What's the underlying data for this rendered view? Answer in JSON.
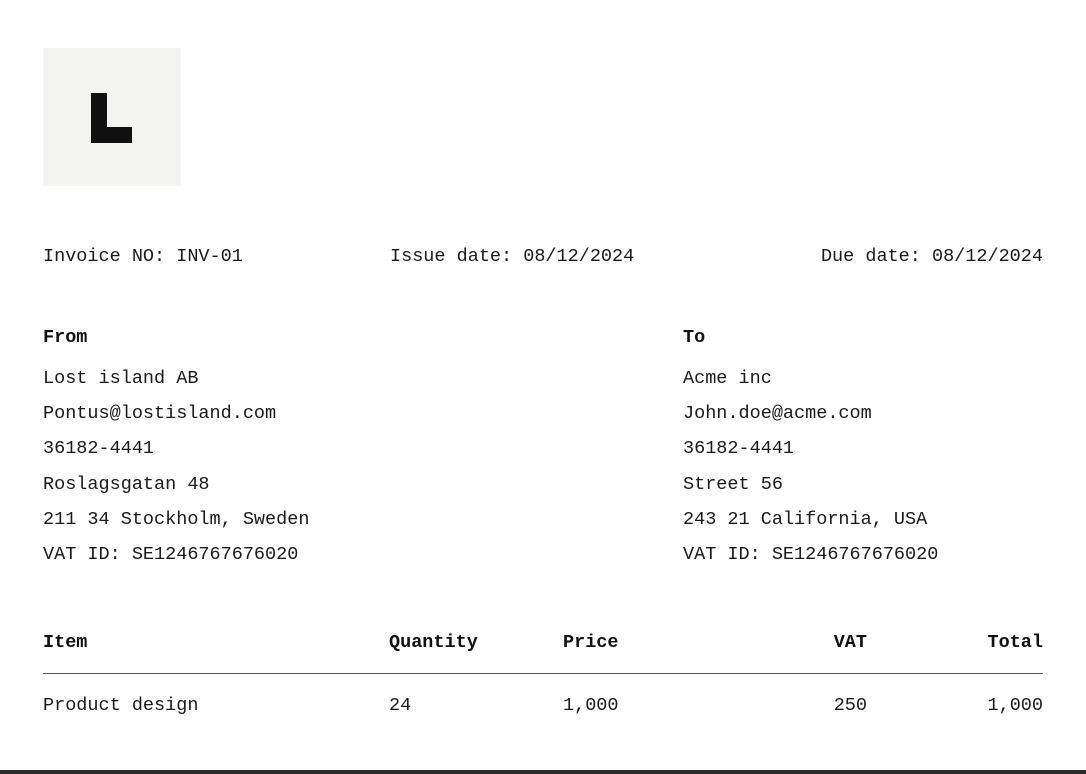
{
  "logo": {
    "letter": "L"
  },
  "meta": {
    "invoice_no": "Invoice NO: INV-01",
    "issue_date": "Issue date: 08/12/2024",
    "due_date": "Due date: 08/12/2024"
  },
  "from": {
    "heading": "From",
    "lines": [
      "Lost island AB",
      "Pontus@lostisland.com",
      "36182-4441",
      "Roslagsgatan 48",
      "211 34 Stockholm, Sweden",
      "VAT ID: SE1246767676020"
    ]
  },
  "to": {
    "heading": "To",
    "lines": [
      "Acme inc",
      "John.doe@acme.com",
      "36182-4441",
      "Street 56",
      "243 21 California, USA",
      "VAT ID: SE1246767676020"
    ]
  },
  "table": {
    "headers": {
      "item": "Item",
      "quantity": "Quantity",
      "price": "Price",
      "vat": "VAT",
      "total": "Total"
    },
    "rows": [
      {
        "item": "Product design",
        "quantity": "24",
        "price": "1,000",
        "vat": "250",
        "total": "1,000"
      }
    ]
  }
}
